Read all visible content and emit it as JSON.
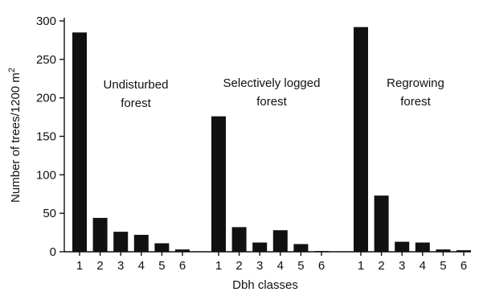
{
  "chart_data": {
    "type": "bar",
    "xlabel": "Dbh classes",
    "ylabel": "Number of trees/1200 m",
    "ylabel_superscript": "2",
    "ylim": [
      0,
      300
    ],
    "yticks": [
      "0",
      "50",
      "100",
      "150",
      "200",
      "250",
      "300"
    ],
    "categories": [
      "1",
      "2",
      "3",
      "4",
      "5",
      "6"
    ],
    "grid": false,
    "legend": "none",
    "groups": [
      {
        "annotation_lines": [
          "Undisturbed",
          "forest"
        ],
        "values": [
          285,
          44,
          26,
          22,
          11,
          3
        ]
      },
      {
        "annotation_lines": [
          "Selectively logged",
          "forest"
        ],
        "values": [
          176,
          32,
          12,
          28,
          10,
          1
        ]
      },
      {
        "annotation_lines": [
          "Regrowing",
          "forest"
        ],
        "values": [
          292,
          73,
          13,
          12,
          3,
          2
        ]
      }
    ],
    "colors": {
      "bar": "#111111",
      "axis": "#111111",
      "background": "#ffffff"
    }
  }
}
